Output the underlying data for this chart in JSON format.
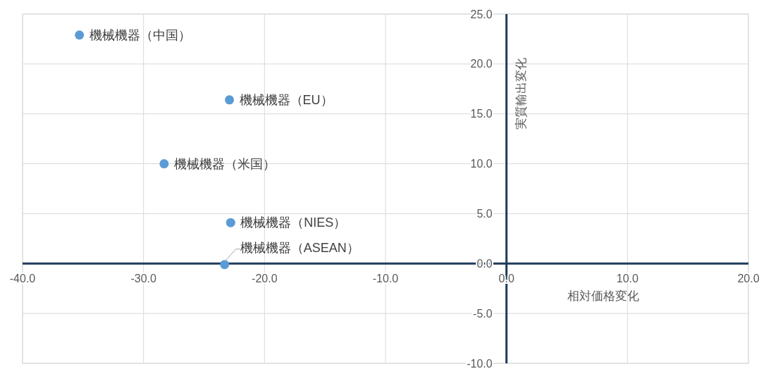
{
  "chart_data": {
    "type": "scatter",
    "xlabel": "相対価格変化",
    "ylabel": "実質輸出変化",
    "x": [
      -35.3,
      -22.9,
      -28.3,
      -22.8,
      -23.3
    ],
    "series": [
      {
        "color": "#5b9bd5",
        "values": [
          22.9,
          16.4,
          10.0,
          4.1,
          -0.1
        ]
      }
    ],
    "annotations": [
      {
        "text": "機械機器（中国）",
        "x": -35.3,
        "y": 22.9
      },
      {
        "text": "機械機器（EU）",
        "x": -22.9,
        "y": 16.4
      },
      {
        "text": "機械機器（米国）",
        "x": -28.3,
        "y": 10.0
      },
      {
        "text": "機械機器（NIES）",
        "x": -22.8,
        "y": 4.1
      },
      {
        "text": "機械機器（ASEAN）",
        "x": -23.3,
        "y": -0.1
      }
    ],
    "xlim": [
      -40,
      20
    ],
    "ylim": [
      -10,
      25
    ],
    "xticks": [
      {
        "value": -40,
        "label": "-40.0"
      },
      {
        "value": -30,
        "label": "-30.0"
      },
      {
        "value": -20,
        "label": "-20.0"
      },
      {
        "value": -10,
        "label": "-10.0"
      },
      {
        "value": 0,
        "label": "0.0"
      },
      {
        "value": 10,
        "label": "10.0"
      },
      {
        "value": 20,
        "label": "20.0"
      }
    ],
    "yticks": [
      {
        "value": -10,
        "label": "-10.0"
      },
      {
        "value": -5,
        "label": "-5.0"
      },
      {
        "value": 0,
        "label": "0.0"
      },
      {
        "value": 5,
        "label": "5.0"
      },
      {
        "value": 10,
        "label": "10.0"
      },
      {
        "value": 15,
        "label": "15.0"
      },
      {
        "value": 20,
        "label": "20.0"
      },
      {
        "value": 25,
        "label": "25.0"
      }
    ],
    "grid": true,
    "marker": "circle"
  }
}
